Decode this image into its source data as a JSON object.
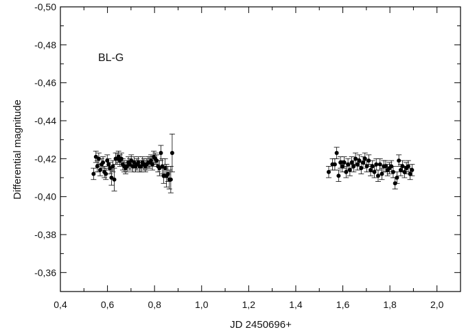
{
  "chart_data": {
    "type": "scatter",
    "title": "",
    "annotation": "BL-G",
    "xlabel": "JD 2450696+",
    "ylabel": "Differential magnitude",
    "xlim": [
      0.4,
      2.1
    ],
    "ylim": [
      -0.35,
      -0.5
    ],
    "y_reversed": true,
    "x_tick_labels": [
      "0,4",
      "0,6",
      "0,8",
      "1,0",
      "1,2",
      "1,4",
      "1,6",
      "1,8",
      "2,0"
    ],
    "x_ticks": [
      0.4,
      0.6,
      0.8,
      1.0,
      1.2,
      1.4,
      1.6,
      1.8,
      2.0
    ],
    "y_tick_labels": [
      "-0,50",
      "-0,48",
      "-0,46",
      "-0,44",
      "-0,42",
      "-0,40",
      "-0,38",
      "-0,36"
    ],
    "y_ticks": [
      -0.5,
      -0.48,
      -0.46,
      -0.44,
      -0.42,
      -0.4,
      -0.38,
      -0.36
    ],
    "grid": false,
    "legend": "none",
    "marker_color": "#000000",
    "series": [
      {
        "x": [
          0.541,
          0.551,
          0.557,
          0.563,
          0.569,
          0.575,
          0.581,
          0.587,
          0.593,
          0.599,
          0.605,
          0.611,
          0.617,
          0.623,
          0.629,
          0.635,
          0.641,
          0.647,
          0.653,
          0.659,
          0.665,
          0.671,
          0.677,
          0.683,
          0.689,
          0.695,
          0.701,
          0.707,
          0.713,
          0.719,
          0.725,
          0.731,
          0.737,
          0.743,
          0.749,
          0.755,
          0.761,
          0.767,
          0.773,
          0.779,
          0.785,
          0.791,
          0.797,
          0.803,
          0.809,
          0.815,
          0.821,
          0.827,
          0.833,
          0.839,
          0.845,
          0.851,
          0.857,
          0.863,
          0.869,
          0.875
        ],
        "y": [
          -0.412,
          -0.421,
          -0.416,
          -0.42,
          -0.414,
          -0.417,
          -0.418,
          -0.413,
          -0.412,
          -0.419,
          -0.417,
          -0.415,
          -0.41,
          -0.416,
          -0.409,
          -0.42,
          -0.42,
          -0.421,
          -0.419,
          -0.42,
          -0.417,
          -0.416,
          -0.415,
          -0.416,
          -0.418,
          -0.417,
          -0.419,
          -0.416,
          -0.418,
          -0.416,
          -0.417,
          -0.418,
          -0.416,
          -0.416,
          -0.418,
          -0.417,
          -0.416,
          -0.417,
          -0.418,
          -0.418,
          -0.419,
          -0.417,
          -0.421,
          -0.42,
          -0.419,
          -0.416,
          -0.415,
          -0.423,
          -0.416,
          -0.411,
          -0.415,
          -0.411,
          -0.412,
          -0.409,
          -0.409,
          -0.423
        ],
        "err": [
          0.003,
          0.003,
          0.003,
          0.003,
          0.003,
          0.003,
          0.003,
          0.003,
          0.003,
          0.003,
          0.003,
          0.003,
          0.004,
          0.003,
          0.006,
          0.003,
          0.003,
          0.003,
          0.003,
          0.003,
          0.003,
          0.003,
          0.003,
          0.003,
          0.003,
          0.003,
          0.003,
          0.003,
          0.003,
          0.003,
          0.003,
          0.003,
          0.003,
          0.003,
          0.003,
          0.003,
          0.003,
          0.003,
          0.003,
          0.003,
          0.003,
          0.003,
          0.003,
          0.003,
          0.003,
          0.003,
          0.004,
          0.004,
          0.004,
          0.004,
          0.005,
          0.006,
          0.004,
          0.005,
          0.007,
          0.01
        ]
      },
      {
        "x": [
          1.54,
          1.556,
          1.566,
          1.574,
          1.582,
          1.59,
          1.598,
          1.606,
          1.614,
          1.622,
          1.63,
          1.638,
          1.646,
          1.654,
          1.662,
          1.67,
          1.678,
          1.686,
          1.694,
          1.702,
          1.71,
          1.718,
          1.726,
          1.734,
          1.742,
          1.75,
          1.758,
          1.766,
          1.774,
          1.782,
          1.79,
          1.798,
          1.806,
          1.814,
          1.822,
          1.83,
          1.838,
          1.846,
          1.854,
          1.862,
          1.87,
          1.878,
          1.886,
          1.894
        ],
        "y": [
          -0.413,
          -0.417,
          -0.417,
          -0.423,
          -0.411,
          -0.418,
          -0.416,
          -0.418,
          -0.413,
          -0.417,
          -0.414,
          -0.418,
          -0.416,
          -0.42,
          -0.417,
          -0.419,
          -0.415,
          -0.418,
          -0.42,
          -0.416,
          -0.419,
          -0.414,
          -0.416,
          -0.413,
          -0.417,
          -0.411,
          -0.417,
          -0.412,
          -0.416,
          -0.416,
          -0.414,
          -0.415,
          -0.416,
          -0.413,
          -0.407,
          -0.41,
          -0.419,
          -0.414,
          -0.416,
          -0.413,
          -0.415,
          -0.416,
          -0.412,
          -0.414
        ],
        "err": [
          0.003,
          0.003,
          0.003,
          0.003,
          0.003,
          0.003,
          0.003,
          0.003,
          0.003,
          0.003,
          0.003,
          0.003,
          0.003,
          0.003,
          0.003,
          0.003,
          0.003,
          0.003,
          0.003,
          0.003,
          0.003,
          0.003,
          0.003,
          0.003,
          0.003,
          0.003,
          0.003,
          0.003,
          0.003,
          0.003,
          0.003,
          0.003,
          0.003,
          0.003,
          0.003,
          0.003,
          0.003,
          0.003,
          0.003,
          0.003,
          0.003,
          0.003,
          0.003,
          0.003
        ]
      }
    ]
  }
}
